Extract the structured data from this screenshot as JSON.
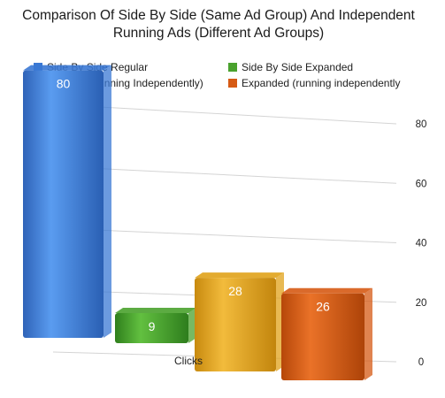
{
  "chart_data": {
    "type": "bar",
    "title_lines": [
      "Comparison Of Side By Side (Same Ad Group) And Independent",
      "Running Ads (Different Ad Groups)"
    ],
    "categories": [
      "Clicks"
    ],
    "series": [
      {
        "name": "Side By Side Regular",
        "values": [
          80
        ],
        "color": "#3a78d4"
      },
      {
        "name": "Side By Side Expanded",
        "values": [
          9
        ],
        "color": "#4aa22e"
      },
      {
        "name": "Regular (Running Independently)",
        "values": [
          28
        ],
        "color": "#e0a21a"
      },
      {
        "name": "Expanded (running independently",
        "values": [
          26
        ],
        "color": "#d65a14"
      }
    ],
    "ylim": [
      0,
      80
    ],
    "yticks": [
      "0",
      "20",
      "40",
      "60",
      "80"
    ],
    "grid": true,
    "legend_position": "top",
    "style": "3d"
  }
}
